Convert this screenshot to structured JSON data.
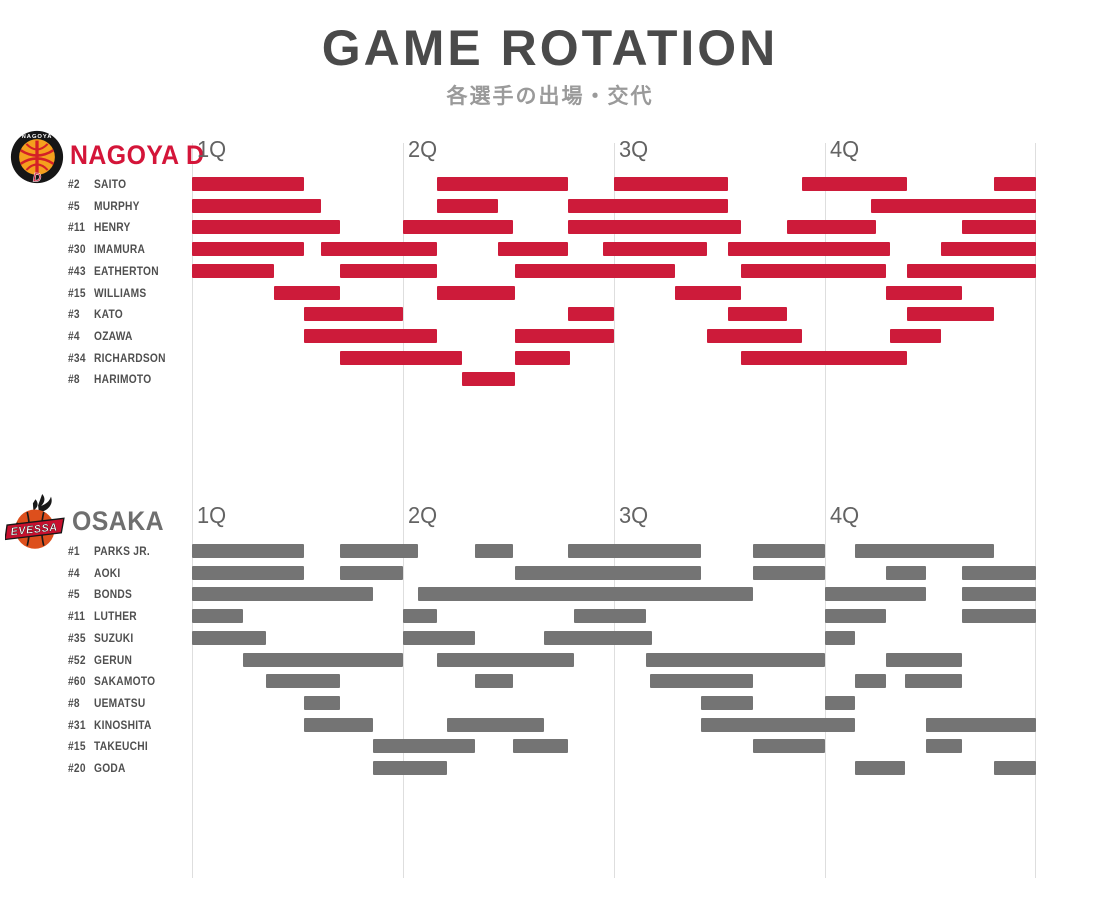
{
  "title": "GAME ROTATION",
  "subtitle": "各選手の出場・交代",
  "quarters": [
    "1Q",
    "2Q",
    "3Q",
    "4Q"
  ],
  "colors": {
    "nagoya_bar": "#cd1b3a",
    "nagoya_name": "#d41539",
    "osaka_bar": "#747474",
    "osaka_name": "#6f6f6f",
    "gridline": "#dedede",
    "title_text": "#4a4a4a",
    "subtitle_text": "#9a9a9a",
    "player_label_text": "#4f4f4f",
    "quarter_label_text": "#636363"
  },
  "chart_data": [
    {
      "type": "gantt-rotation",
      "team": "NAGOYA D",
      "logo_icon": "nagoya-diamond-dolphins-crest",
      "bar_color": "#cd1b3a",
      "unit": "minutes",
      "x_range": [
        0,
        40
      ],
      "quarter_marks_min": [
        0,
        10,
        20,
        30,
        40
      ],
      "players": [
        {
          "number": "#2",
          "name": "SAITO",
          "stints": [
            [
              0,
              5.3
            ],
            [
              11.6,
              17.8
            ],
            [
              20,
              25.4
            ],
            [
              28.9,
              33.9
            ],
            [
              38,
              40
            ]
          ]
        },
        {
          "number": "#5",
          "name": "MURPHY",
          "stints": [
            [
              0,
              6.1
            ],
            [
              11.6,
              14.5
            ],
            [
              17.8,
              25.4
            ],
            [
              32.2,
              40
            ]
          ]
        },
        {
          "number": "#11",
          "name": "HENRY",
          "stints": [
            [
              0,
              7
            ],
            [
              10,
              15.2
            ],
            [
              17.8,
              26
            ],
            [
              28.2,
              32.4
            ],
            [
              36.5,
              40
            ]
          ]
        },
        {
          "number": "#30",
          "name": "IMAMURA",
          "stints": [
            [
              0,
              5.3
            ],
            [
              6.1,
              11.6
            ],
            [
              14.5,
              17.8
            ],
            [
              19.5,
              24.4
            ],
            [
              25.4,
              33.1
            ],
            [
              35.5,
              40
            ]
          ]
        },
        {
          "number": "#43",
          "name": "EATHERTON",
          "stints": [
            [
              0,
              3.9
            ],
            [
              7,
              11.6
            ],
            [
              15.3,
              22.9
            ],
            [
              26,
              32.9
            ],
            [
              33.9,
              40
            ]
          ]
        },
        {
          "number": "#15",
          "name": "WILLIAMS",
          "stints": [
            [
              3.9,
              7
            ],
            [
              11.6,
              15.3
            ],
            [
              22.9,
              26
            ],
            [
              32.9,
              36.5
            ]
          ]
        },
        {
          "number": "#3",
          "name": "KATO",
          "stints": [
            [
              5.3,
              10
            ],
            [
              17.8,
              20
            ],
            [
              25.4,
              28.2
            ],
            [
              33.9,
              38
            ]
          ]
        },
        {
          "number": "#4",
          "name": "OZAWA",
          "stints": [
            [
              5.3,
              11.6
            ],
            [
              15.3,
              20
            ],
            [
              24.4,
              28.9
            ],
            [
              33.1,
              35.5
            ]
          ]
        },
        {
          "number": "#34",
          "name": "RICHARDSON",
          "stints": [
            [
              7,
              12.8
            ],
            [
              15.3,
              17.9
            ],
            [
              26,
              33.9
            ]
          ]
        },
        {
          "number": "#8",
          "name": "HARIMOTO",
          "stints": [
            [
              12.8,
              15.3
            ]
          ]
        }
      ]
    },
    {
      "type": "gantt-rotation",
      "team": "OSAKA",
      "logo_icon": "osaka-evessa-crest",
      "bar_color": "#747474",
      "unit": "minutes",
      "x_range": [
        0,
        40
      ],
      "quarter_marks_min": [
        0,
        10,
        20,
        30,
        40
      ],
      "players": [
        {
          "number": "#1",
          "name": "PARKS JR.",
          "stints": [
            [
              0,
              5.3
            ],
            [
              7,
              10.7
            ],
            [
              13.4,
              15.2
            ],
            [
              17.8,
              24.1
            ],
            [
              26.6,
              30
            ],
            [
              31.4,
              38
            ]
          ]
        },
        {
          "number": "#4",
          "name": "AOKI",
          "stints": [
            [
              0,
              5.3
            ],
            [
              7,
              10
            ],
            [
              15.3,
              24.1
            ],
            [
              26.6,
              30
            ],
            [
              32.9,
              34.8
            ],
            [
              36.5,
              40
            ]
          ]
        },
        {
          "number": "#5",
          "name": "BONDS",
          "stints": [
            [
              0,
              8.6
            ],
            [
              10.7,
              26.6
            ],
            [
              30,
              34.8
            ],
            [
              36.5,
              40
            ]
          ]
        },
        {
          "number": "#11",
          "name": "LUTHER",
          "stints": [
            [
              0,
              2.4
            ],
            [
              10,
              11.6
            ],
            [
              18.1,
              21.5
            ],
            [
              30,
              32.9
            ],
            [
              36.5,
              40
            ]
          ]
        },
        {
          "number": "#35",
          "name": "SUZUKI",
          "stints": [
            [
              0,
              3.5
            ],
            [
              10,
              13.4
            ],
            [
              16.7,
              21.8
            ],
            [
              30,
              31.4
            ]
          ]
        },
        {
          "number": "#52",
          "name": "GERUN",
          "stints": [
            [
              2.4,
              10
            ],
            [
              11.6,
              18.1
            ],
            [
              21.5,
              30
            ],
            [
              32.9,
              36.5
            ]
          ]
        },
        {
          "number": "#60",
          "name": "SAKAMOTO",
          "stints": [
            [
              3.5,
              7
            ],
            [
              13.4,
              15.2
            ],
            [
              21.7,
              26.6
            ],
            [
              31.4,
              32.9
            ],
            [
              33.8,
              36.5
            ]
          ]
        },
        {
          "number": "#8",
          "name": "UEMATSU",
          "stints": [
            [
              5.3,
              7
            ],
            [
              24.1,
              26.6
            ],
            [
              30,
              31.4
            ]
          ]
        },
        {
          "number": "#31",
          "name": "KINOSHITA",
          "stints": [
            [
              5.3,
              8.6
            ],
            [
              12.1,
              16.7
            ],
            [
              24.1,
              31.4
            ],
            [
              34.8,
              40
            ]
          ]
        },
        {
          "number": "#15",
          "name": "TAKEUCHI",
          "stints": [
            [
              8.6,
              13.4
            ],
            [
              15.2,
              17.8
            ],
            [
              26.6,
              30
            ],
            [
              34.8,
              36.5
            ]
          ]
        },
        {
          "number": "#20",
          "name": "GODA",
          "stints": [
            [
              8.6,
              12.1
            ],
            [
              31.4,
              33.8
            ],
            [
              38,
              40
            ]
          ]
        }
      ]
    }
  ]
}
